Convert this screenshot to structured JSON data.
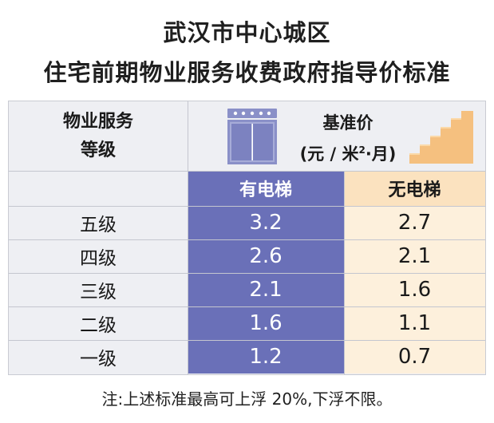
{
  "title": {
    "line1": "武汉市中心城区",
    "line2": "住宅前期物业服务收费政府指导价标准"
  },
  "table": {
    "header": {
      "level_line1": "物业服务",
      "level_line2": "等级",
      "price_line1": "基准价",
      "price_line2_prefix": "(元 / 米",
      "price_line2_sup": "2",
      "price_line2_suffix": "·月)"
    },
    "columns": {
      "with_elevator": "有电梯",
      "without_elevator": "无电梯"
    },
    "rows": [
      {
        "level": "五级",
        "with_elevator": "3.2",
        "without_elevator": "2.7"
      },
      {
        "level": "四级",
        "with_elevator": "2.6",
        "without_elevator": "2.1"
      },
      {
        "level": "三级",
        "with_elevator": "2.1",
        "without_elevator": "1.6"
      },
      {
        "level": "二级",
        "with_elevator": "1.6",
        "without_elevator": "1.1"
      },
      {
        "level": "一级",
        "with_elevator": "1.2",
        "without_elevator": "0.7"
      }
    ]
  },
  "note": "注:上述标准最高可上浮 20%,下浮不限。",
  "colors": {
    "lift_column": "#6a70b8",
    "nolift_column": "#fdf0dc",
    "nolift_header": "#fbe2bf",
    "stairs": "#f5c07f",
    "elevator": "#8a90c8",
    "table_bg": "#eeeff3"
  },
  "icons": {
    "elevator": "elevator-icon",
    "stairs": "stairs-icon"
  }
}
